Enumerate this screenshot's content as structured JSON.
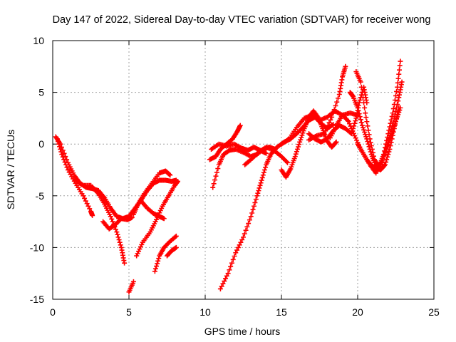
{
  "chart_data": {
    "type": "scatter",
    "title": "Day 147 of 2022, Sidereal Day-to-day VTEC variation (SDTVAR) for receiver wong",
    "xlabel": "GPS time / hours",
    "ylabel": "SDTVAR / TECUs",
    "xlim": [
      0,
      25
    ],
    "ylim": [
      -15,
      10
    ],
    "xticks": [
      0,
      5,
      10,
      15,
      20,
      25
    ],
    "yticks": [
      -15,
      -10,
      -5,
      0,
      5,
      10
    ],
    "xtick_labels": [
      "0",
      "5",
      "10",
      "15",
      "20",
      "25"
    ],
    "ytick_labels": [
      "-15",
      "-10",
      "-5",
      "0",
      "5",
      "10"
    ],
    "grid": true,
    "marker": "+",
    "colors": {
      "series": "#ff0000",
      "grid": "#a0a0a0",
      "axis": "#000000"
    },
    "series": [
      {
        "name": "track-1",
        "points": [
          [
            0.2,
            0.7
          ],
          [
            0.5,
            0
          ],
          [
            1.0,
            -1.8
          ],
          [
            1.4,
            -3.0
          ],
          [
            1.8,
            -3.8
          ],
          [
            2.2,
            -4.2
          ],
          [
            2.6,
            -4.3
          ],
          [
            3.0,
            -4.5
          ],
          [
            3.4,
            -5.2
          ],
          [
            3.8,
            -6.2
          ],
          [
            4.2,
            -7.0
          ],
          [
            4.6,
            -7.2
          ],
          [
            5.0,
            -7.0
          ],
          [
            5.4,
            -6.2
          ],
          [
            5.8,
            -5.4
          ],
          [
            6.2,
            -4.5
          ],
          [
            6.6,
            -3.8
          ],
          [
            7.0,
            -3.5
          ],
          [
            7.4,
            -3.5
          ],
          [
            7.8,
            -3.6
          ],
          [
            8.1,
            -3.5
          ]
        ]
      },
      {
        "name": "track-2",
        "points": [
          [
            0.3,
            0.5
          ],
          [
            0.6,
            -1.0
          ],
          [
            1.0,
            -2.5
          ],
          [
            1.5,
            -3.8
          ],
          [
            2.0,
            -5.0
          ],
          [
            2.5,
            -6.5
          ],
          [
            2.6,
            -6.9
          ]
        ]
      },
      {
        "name": "track-3",
        "points": [
          [
            1.5,
            -3.5
          ],
          [
            2.0,
            -4.0
          ],
          [
            2.5,
            -4.0
          ],
          [
            3.0,
            -4.8
          ],
          [
            3.4,
            -5.8
          ],
          [
            3.8,
            -7.0
          ],
          [
            4.2,
            -8.5
          ],
          [
            4.5,
            -10.0
          ],
          [
            4.7,
            -11.5
          ]
        ]
      },
      {
        "name": "track-4",
        "points": [
          [
            3.3,
            -7.5
          ],
          [
            3.7,
            -8.2
          ],
          [
            4.1,
            -7.8
          ],
          [
            4.5,
            -7.2
          ],
          [
            4.9,
            -7.3
          ],
          [
            5.2,
            -7.1
          ]
        ]
      },
      {
        "name": "track-5",
        "points": [
          [
            5.0,
            -14.3
          ],
          [
            5.3,
            -13.3
          ]
        ]
      },
      {
        "name": "track-6",
        "points": [
          [
            5.3,
            -6.8
          ],
          [
            5.6,
            -5.8
          ],
          [
            6.0,
            -4.8
          ],
          [
            6.5,
            -3.8
          ],
          [
            7.0,
            -2.8
          ],
          [
            7.4,
            -2.6
          ],
          [
            7.7,
            -3.0
          ]
        ]
      },
      {
        "name": "track-7",
        "points": [
          [
            5.5,
            -10.8
          ],
          [
            5.9,
            -9.5
          ],
          [
            6.4,
            -8.5
          ],
          [
            6.8,
            -7.3
          ],
          [
            7.2,
            -6.0
          ],
          [
            7.6,
            -5.0
          ],
          [
            8.0,
            -4.0
          ],
          [
            8.2,
            -3.6
          ]
        ]
      },
      {
        "name": "track-8",
        "points": [
          [
            5.8,
            -5.5
          ],
          [
            6.2,
            -6.2
          ],
          [
            6.6,
            -6.7
          ],
          [
            7.0,
            -7.0
          ],
          [
            7.3,
            -7.2
          ]
        ]
      },
      {
        "name": "track-9",
        "points": [
          [
            6.7,
            -12.3
          ],
          [
            7.0,
            -10.8
          ],
          [
            7.3,
            -10.0
          ],
          [
            7.7,
            -9.4
          ],
          [
            8.1,
            -8.9
          ]
        ]
      },
      {
        "name": "track-10",
        "points": [
          [
            7.5,
            -10.8
          ],
          [
            7.8,
            -10.3
          ],
          [
            8.1,
            -10.0
          ]
        ]
      },
      {
        "name": "track-11",
        "points": [
          [
            10.3,
            -1.5
          ],
          [
            10.7,
            -1.2
          ],
          [
            11.0,
            -0.5
          ],
          [
            11.4,
            0
          ],
          [
            11.8,
            0.5
          ],
          [
            12.1,
            1.2
          ],
          [
            12.3,
            1.8
          ]
        ]
      },
      {
        "name": "track-12",
        "points": [
          [
            10.5,
            -4.2
          ],
          [
            10.9,
            -2.0
          ],
          [
            11.2,
            -1.0
          ],
          [
            11.6,
            -0.6
          ],
          [
            12.0,
            -0.5
          ],
          [
            12.5,
            -0.8
          ],
          [
            13.0,
            -1.2
          ],
          [
            13.4,
            -1.0
          ],
          [
            13.8,
            -0.5
          ],
          [
            14.2,
            -0.3
          ],
          [
            14.6,
            -0.5
          ]
        ]
      },
      {
        "name": "track-13",
        "points": [
          [
            10.4,
            -0.5
          ],
          [
            10.9,
            0
          ],
          [
            11.4,
            -0.2
          ],
          [
            11.9,
            0
          ],
          [
            12.4,
            -0.4
          ],
          [
            12.8,
            -0.6
          ],
          [
            13.2,
            -0.3
          ],
          [
            13.6,
            -0.6
          ],
          [
            14.0,
            -0.9
          ]
        ]
      },
      {
        "name": "track-14",
        "points": [
          [
            11.0,
            -14.0
          ],
          [
            11.5,
            -12.5
          ],
          [
            12.0,
            -10.5
          ],
          [
            12.5,
            -9.0
          ],
          [
            13.0,
            -7.0
          ],
          [
            13.4,
            -5.0
          ],
          [
            13.7,
            -3.5
          ],
          [
            14.0,
            -2.0
          ],
          [
            14.3,
            -1.0
          ],
          [
            14.7,
            -0.3
          ],
          [
            15.2,
            0.2
          ],
          [
            15.6,
            0.5
          ],
          [
            16.0,
            1.0
          ],
          [
            16.4,
            1.6
          ],
          [
            16.8,
            2.3
          ],
          [
            17.2,
            2.6
          ],
          [
            17.6,
            2.0
          ],
          [
            18.0,
            1.5
          ],
          [
            18.4,
            1.9
          ]
        ]
      },
      {
        "name": "track-15",
        "points": [
          [
            12.6,
            -2.0
          ],
          [
            13.0,
            -1.5
          ],
          [
            13.5,
            -0.8
          ],
          [
            14.0,
            -0.3
          ],
          [
            14.5,
            -0.6
          ],
          [
            15.0,
            -1.2
          ],
          [
            15.4,
            -1.8
          ]
        ]
      },
      {
        "name": "track-16",
        "points": [
          [
            15.0,
            -2.5
          ],
          [
            15.3,
            -3.2
          ],
          [
            15.6,
            -2.4
          ],
          [
            15.9,
            -1.2
          ],
          [
            16.2,
            0.2
          ],
          [
            16.5,
            1.5
          ],
          [
            16.8,
            2.6
          ],
          [
            17.1,
            3.2
          ],
          [
            17.4,
            2.6
          ],
          [
            17.7,
            1.5
          ],
          [
            18.0,
            0.3
          ],
          [
            18.3,
            -0.3
          ],
          [
            18.6,
            0.2
          ]
        ]
      },
      {
        "name": "track-17",
        "points": [
          [
            15.0,
            0
          ],
          [
            15.5,
            0.5
          ],
          [
            16.0,
            1.6
          ],
          [
            16.5,
            2.5
          ],
          [
            17.0,
            2.8
          ],
          [
            17.5,
            2.3
          ],
          [
            18.0,
            2.6
          ],
          [
            18.5,
            3.2
          ],
          [
            19.0,
            2.8
          ],
          [
            19.5,
            3.0
          ],
          [
            20.0,
            2.8
          ]
        ]
      },
      {
        "name": "track-18",
        "points": [
          [
            16.8,
            0.4
          ],
          [
            17.3,
            0.8
          ],
          [
            17.8,
            1.0
          ],
          [
            18.3,
            2.6
          ],
          [
            18.8,
            4.8
          ],
          [
            19.0,
            6.5
          ],
          [
            19.2,
            7.5
          ]
        ]
      },
      {
        "name": "track-19",
        "points": [
          [
            16.8,
            1.0
          ],
          [
            17.2,
            0.5
          ],
          [
            17.6,
            0.2
          ],
          [
            18.0,
            0.5
          ],
          [
            18.4,
            1.3
          ],
          [
            18.8,
            1.8
          ],
          [
            19.2,
            1.5
          ],
          [
            19.6,
            1.0
          ],
          [
            19.9,
            2.5
          ],
          [
            20.1,
            4.0
          ],
          [
            20.4,
            5.5
          ],
          [
            20.6,
            4.0
          ]
        ]
      },
      {
        "name": "track-20",
        "points": [
          [
            18.2,
            0.6
          ],
          [
            18.6,
            1.8
          ],
          [
            19.0,
            2.8
          ],
          [
            19.4,
            2.2
          ],
          [
            19.8,
            0.8
          ],
          [
            20.2,
            -0.5
          ],
          [
            20.6,
            -1.5
          ],
          [
            21.0,
            -2.2
          ],
          [
            21.3,
            -2.4
          ],
          [
            21.6,
            -1.6
          ],
          [
            21.9,
            -0.5
          ],
          [
            22.2,
            0.8
          ],
          [
            22.5,
            2.2
          ],
          [
            22.8,
            3.5
          ]
        ]
      },
      {
        "name": "track-21",
        "points": [
          [
            19.5,
            5.0
          ],
          [
            19.7,
            4.6
          ],
          [
            20.0,
            3.5
          ],
          [
            20.3,
            1.8
          ],
          [
            20.6,
            0.5
          ],
          [
            20.9,
            -1.0
          ],
          [
            21.2,
            -2.2
          ],
          [
            21.5,
            -2.5
          ],
          [
            21.8,
            -2.0
          ],
          [
            22.1,
            -0.5
          ],
          [
            22.4,
            1.5
          ],
          [
            22.7,
            3.5
          ]
        ]
      },
      {
        "name": "track-22",
        "points": [
          [
            19.9,
            7.0
          ],
          [
            20.2,
            6.0
          ],
          [
            20.5,
            3.0
          ],
          [
            20.8,
            0.5
          ],
          [
            21.1,
            -1.5
          ],
          [
            21.4,
            -2.2
          ],
          [
            21.7,
            -1.0
          ],
          [
            22.0,
            1.0
          ],
          [
            22.3,
            3.0
          ],
          [
            22.6,
            5.5
          ],
          [
            22.8,
            8.0
          ]
        ]
      },
      {
        "name": "track-23",
        "points": [
          [
            20.0,
            0
          ],
          [
            20.4,
            -1.0
          ],
          [
            20.8,
            -2.0
          ],
          [
            21.2,
            -2.8
          ],
          [
            21.6,
            -1.8
          ],
          [
            22.0,
            0.3
          ],
          [
            22.4,
            2.5
          ],
          [
            22.7,
            4.5
          ],
          [
            22.9,
            6.0
          ]
        ]
      }
    ]
  }
}
